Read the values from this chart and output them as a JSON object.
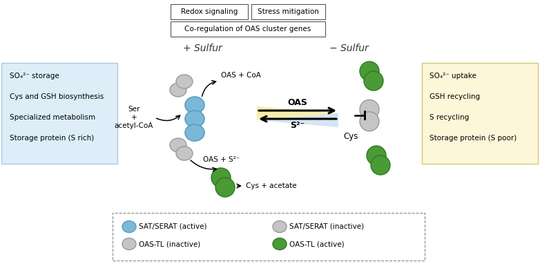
{
  "left_box_lines": [
    "SO₄²⁻ storage",
    "Cys and GSH biosynthesis",
    "Specialized metabolism",
    "Storage protein (S rich)"
  ],
  "right_box_lines": [
    "SO₄²⁻ uptake",
    "GSH recycling",
    "S recycling",
    "Storage protein (S poor)"
  ],
  "left_box_bg": "#ddeef8",
  "right_box_bg": "#fdf6d8",
  "plus_sulfur_label": "+ Sulfur",
  "minus_sulfur_label": "− Sulfur",
  "color_blue": "#7ab8d8",
  "color_green": "#4a9a35",
  "color_lgray": "#c5c5c5",
  "top_box1": "Redox signaling",
  "top_box2": "Stress mitigation",
  "top_box3": "Co-regulation of OAS cluster genes"
}
